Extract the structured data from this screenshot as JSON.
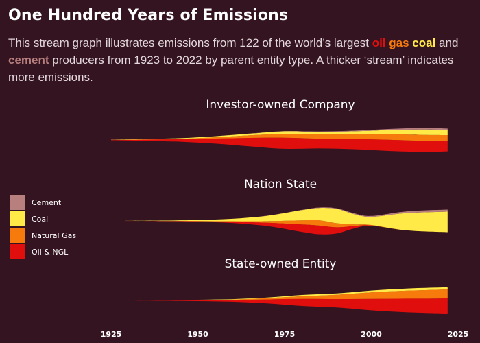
{
  "title": "One Hundred Years of Emissions",
  "subtitle": {
    "p1": "This stream graph illustrates emissions from 122 of the world’s largest ",
    "oil": "oil",
    "sep1": " ",
    "gas": "gas",
    "sep2": " ",
    "coal": "coal",
    "p2": " and ",
    "cement": "cement",
    "p3": " producers from 1923 to 2022 by parent entity type. A thicker ‘stream’ indicates more emissions."
  },
  "colors": {
    "Cement": "#b87f7f",
    "Coal": "#ffea47",
    "Natural Gas": "#f77a0c",
    "Oil & NGL": "#e10e0e",
    "oil_text": "#e10e0e",
    "gas_text": "#f77a0c",
    "coal_text": "#ffea47",
    "cement_text": "#b87f7f"
  },
  "legend": [
    "Cement",
    "Coal",
    "Natural Gas",
    "Oil & NGL"
  ],
  "chart_data": {
    "type": "area",
    "layout": "streamgraph",
    "x_ticks": [
      1925,
      1950,
      1975,
      2000,
      2025
    ],
    "xlim": [
      1925,
      2025
    ],
    "categories": [
      "Oil & NGL",
      "Natural Gas",
      "Coal",
      "Cement"
    ],
    "panels": [
      {
        "name": "Investor-owned Company",
        "x": [
          1925,
          1935,
          1945,
          1955,
          1965,
          1975,
          1985,
          1995,
          2005,
          2015,
          2022
        ],
        "series": [
          {
            "name": "Oil & NGL",
            "values": [
              0.1,
              0.3,
              0.6,
              1.2,
              2.0,
              2.6,
              2.3,
              2.4,
              2.6,
              2.6,
              2.4
            ]
          },
          {
            "name": "Natural Gas",
            "values": [
              0,
              0.05,
              0.1,
              0.3,
              0.6,
              0.9,
              1.0,
              1.1,
              1.3,
              1.4,
              1.4
            ]
          },
          {
            "name": "Coal",
            "values": [
              0.05,
              0.1,
              0.15,
              0.25,
              0.4,
              0.6,
              0.6,
              0.7,
              1.0,
              1.3,
              1.2
            ]
          },
          {
            "name": "Cement",
            "values": [
              0,
              0,
              0,
              0,
              0.02,
              0.05,
              0.1,
              0.15,
              0.25,
              0.35,
              0.35
            ]
          }
        ]
      },
      {
        "name": "Nation State",
        "x": [
          1929,
          1940,
          1950,
          1960,
          1970,
          1980,
          1985,
          1990,
          1995,
          2000,
          2010,
          2022
        ],
        "series": [
          {
            "name": "Oil & NGL",
            "values": [
              0.01,
              0.05,
              0.1,
              0.3,
              0.8,
              1.8,
              2.1,
              1.5,
              0.6,
              0.1,
              0,
              0
            ]
          },
          {
            "name": "Natural Gas",
            "values": [
              0,
              0.02,
              0.05,
              0.15,
              0.4,
              1.0,
              1.3,
              1.0,
              0.4,
              0.1,
              0,
              0
            ]
          },
          {
            "name": "Coal",
            "values": [
              0.02,
              0.1,
              0.25,
              0.6,
              1.3,
              2.5,
              3.0,
              3.5,
              2.5,
              2.0,
              4.2,
              5.0
            ]
          },
          {
            "name": "Cement",
            "values": [
              0,
              0,
              0,
              0,
              0.02,
              0.05,
              0.1,
              0.15,
              0.2,
              0.2,
              0.4,
              0.5
            ]
          }
        ]
      },
      {
        "name": "State-owned Entity",
        "x": [
          1928,
          1940,
          1950,
          1960,
          1970,
          1980,
          1990,
          2000,
          2010,
          2020,
          2022
        ],
        "series": [
          {
            "name": "Oil & NGL",
            "values": [
              0.01,
              0.1,
              0.2,
              0.4,
              0.9,
              1.6,
              1.9,
              2.6,
              3.1,
              3.4,
              3.5
            ]
          },
          {
            "name": "Natural Gas",
            "values": [
              0,
              0.02,
              0.05,
              0.1,
              0.3,
              0.6,
              1.0,
              1.5,
              1.8,
              2.0,
              2.0
            ]
          },
          {
            "name": "Coal",
            "values": [
              0,
              0.02,
              0.05,
              0.1,
              0.15,
              0.3,
              0.3,
              0.4,
              0.5,
              0.5,
              0.4
            ]
          },
          {
            "name": "Cement",
            "values": [
              0,
              0,
              0,
              0,
              0,
              0,
              0,
              0,
              0,
              0,
              0
            ]
          }
        ]
      }
    ]
  }
}
